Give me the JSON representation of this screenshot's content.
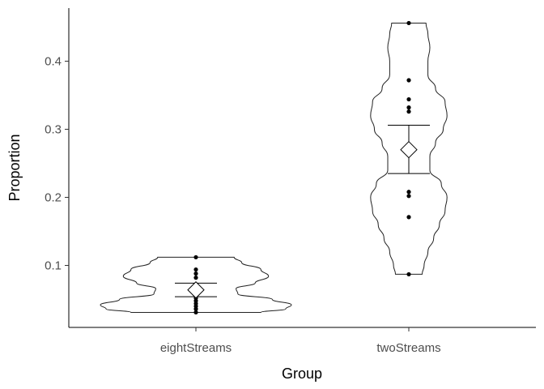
{
  "chart_data": {
    "type": "violin",
    "xlabel": "Group",
    "ylabel": "Proportion",
    "categories": [
      "eightStreams",
      "twoStreams"
    ],
    "ylim": [
      0.01,
      0.48
    ],
    "yticks": [
      0.1,
      0.2,
      0.3,
      0.4
    ],
    "ytick_labels": [
      "0.1",
      "0.2",
      "0.3",
      "0.4"
    ],
    "grid": false,
    "groups": [
      {
        "name": "eightStreams",
        "points": [
          0.112,
          0.094,
          0.088,
          0.082,
          0.07,
          0.065,
          0.058,
          0.052,
          0.048,
          0.044,
          0.04,
          0.036,
          0.031
        ],
        "mean": 0.064,
        "ci": [
          0.054,
          0.074
        ],
        "violin_range": [
          0.031,
          0.112
        ],
        "violin_density": [
          [
            0.031,
            0.34
          ],
          [
            0.036,
            0.47
          ],
          [
            0.042,
            0.5
          ],
          [
            0.05,
            0.4
          ],
          [
            0.058,
            0.22
          ],
          [
            0.066,
            0.21
          ],
          [
            0.074,
            0.31
          ],
          [
            0.084,
            0.38
          ],
          [
            0.094,
            0.34
          ],
          [
            0.104,
            0.24
          ],
          [
            0.112,
            0.2
          ]
        ]
      },
      {
        "name": "twoStreams",
        "points": [
          0.456,
          0.372,
          0.344,
          0.332,
          0.326,
          0.208,
          0.202,
          0.171,
          0.087
        ],
        "mean": 0.27,
        "ci": [
          0.235,
          0.306
        ],
        "violin_range": [
          0.087,
          0.456
        ],
        "violin_density": [
          [
            0.087,
            0.07
          ],
          [
            0.1,
            0.08
          ],
          [
            0.12,
            0.1
          ],
          [
            0.14,
            0.13
          ],
          [
            0.16,
            0.16
          ],
          [
            0.18,
            0.19
          ],
          [
            0.2,
            0.2
          ],
          [
            0.22,
            0.17
          ],
          [
            0.24,
            0.11
          ],
          [
            0.26,
            0.11
          ],
          [
            0.28,
            0.14
          ],
          [
            0.3,
            0.18
          ],
          [
            0.32,
            0.2
          ],
          [
            0.34,
            0.19
          ],
          [
            0.36,
            0.14
          ],
          [
            0.38,
            0.1
          ],
          [
            0.4,
            0.1
          ],
          [
            0.42,
            0.11
          ],
          [
            0.44,
            0.1
          ],
          [
            0.456,
            0.09
          ]
        ]
      }
    ]
  }
}
